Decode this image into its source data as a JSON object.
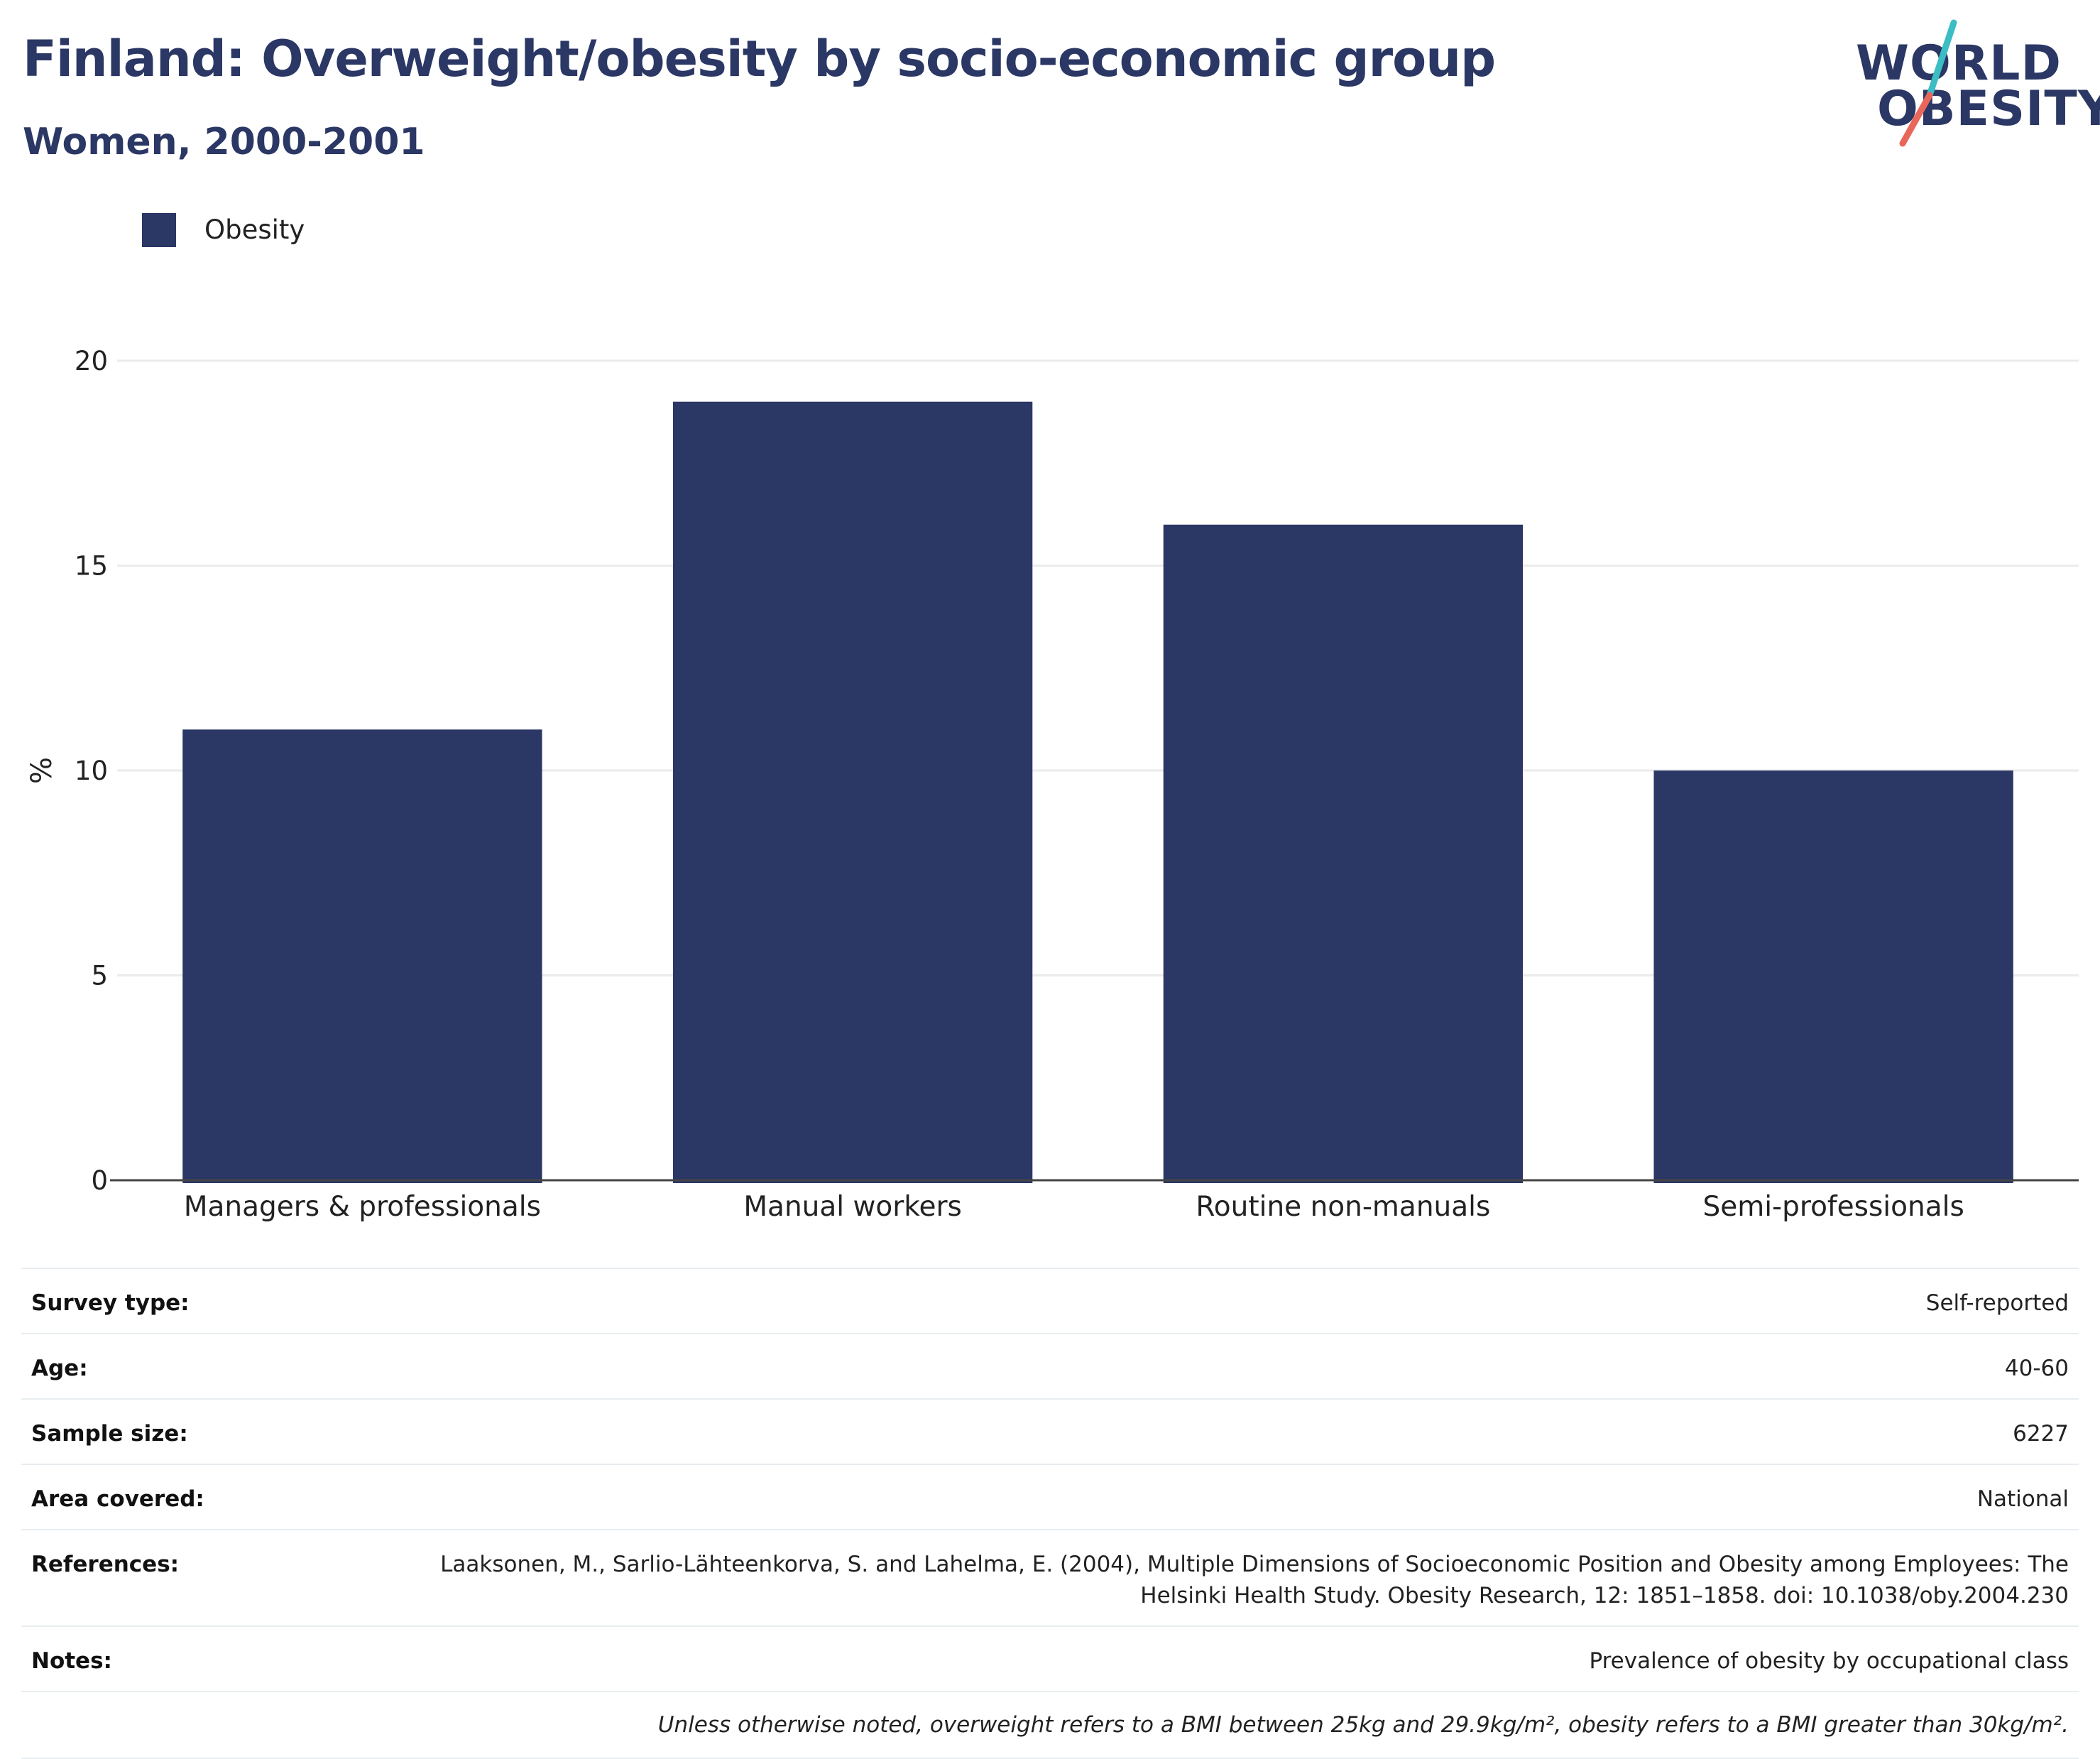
{
  "header": {
    "title": "Finland: Overweight/obesity by socio-economic group",
    "subtitle": "Women, 2000-2001"
  },
  "logo": {
    "line1": "WORLD",
    "line2": "OBESITY",
    "colors": {
      "text": "#2b3764",
      "slash_top": "#3bbdc3",
      "slash_bottom": "#e8675a"
    }
  },
  "legend": {
    "label": "Obesity",
    "color": "#2b3764"
  },
  "chart_data": {
    "type": "bar",
    "categories": [
      "Managers & professionals",
      "Manual workers",
      "Routine non-manuals",
      "Semi-professionals"
    ],
    "series": [
      {
        "name": "Obesity",
        "values": [
          11,
          19,
          16,
          10
        ],
        "color": "#2b3764"
      }
    ],
    "ylabel": "%",
    "xlabel": "",
    "ylim": [
      0,
      20
    ],
    "yticks": [
      0,
      5,
      10,
      15,
      20
    ],
    "grid": true,
    "legend_position": "top-left"
  },
  "meta": {
    "rows": [
      {
        "key": "Survey type:",
        "value": "Self-reported"
      },
      {
        "key": "Age:",
        "value": "40-60"
      },
      {
        "key": "Sample size:",
        "value": "6227"
      },
      {
        "key": "Area covered:",
        "value": "National"
      },
      {
        "key": "References:",
        "value": "Laaksonen, M., Sarlio-Lähteenkorva, S. and Lahelma, E. (2004), Multiple Dimensions of Socioeconomic Position and Obesity among Employees: The Helsinki Health Study. Obesity Research, 12: 1851–1858. doi: 10.1038/oby.2004.230"
      },
      {
        "key": "Notes:",
        "value": "Prevalence of obesity by occupational class"
      }
    ],
    "footnote": "Unless otherwise noted, overweight refers to a BMI between 25kg and 29.9kg/m², obesity refers to a BMI greater than 30kg/m²."
  }
}
